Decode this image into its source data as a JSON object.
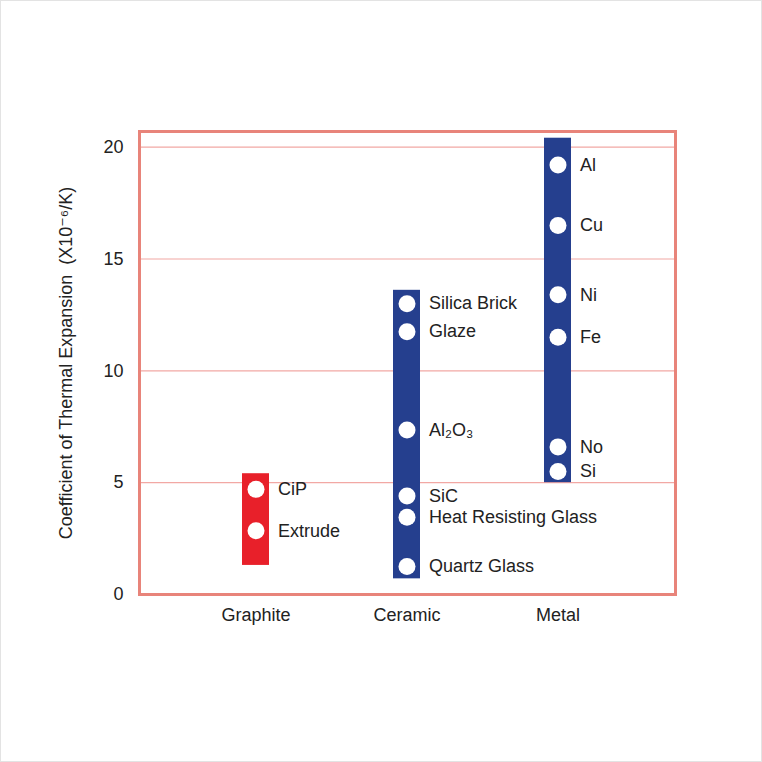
{
  "chart_data": {
    "type": "range_bar",
    "y_label": "Coefficient of Thermal Expansion  (X10⁻⁶/K)",
    "categories": [
      "Graphite",
      "Ceramic",
      "Metal"
    ],
    "low": [
      1.3,
      0.7,
      5.0
    ],
    "high": [
      5.4,
      13.6,
      20.4
    ],
    "colors": [
      "#e8202a",
      "#253f8e",
      "#253f8e"
    ],
    "points": [
      {
        "category": "Graphite",
        "name": "CiP",
        "value": 4.7
      },
      {
        "category": "Graphite",
        "name": "Extrude",
        "value": 2.85
      },
      {
        "category": "Ceramic",
        "name": "Silica Brick",
        "value": 13.0
      },
      {
        "category": "Ceramic",
        "name": "Glaze",
        "value": 11.75
      },
      {
        "category": "Ceramic",
        "name": "Al₂O₃",
        "value": 7.35
      },
      {
        "category": "Ceramic",
        "name": "SiC",
        "value": 4.4
      },
      {
        "category": "Ceramic",
        "name": "Heat Resisting Glass",
        "value": 3.45
      },
      {
        "category": "Ceramic",
        "name": "Quartz Glass",
        "value": 1.25
      },
      {
        "category": "Metal",
        "name": "Al",
        "value": 19.2
      },
      {
        "category": "Metal",
        "name": "Cu",
        "value": 16.5
      },
      {
        "category": "Metal",
        "name": "Ni",
        "value": 13.4
      },
      {
        "category": "Metal",
        "name": "Fe",
        "value": 11.5
      },
      {
        "category": "Metal",
        "name": "No",
        "value": 6.6
      },
      {
        "category": "Metal",
        "name": "Si",
        "value": 5.5
      }
    ],
    "ylim": [
      0,
      20.7
    ],
    "yticks": [
      0,
      5,
      10,
      15,
      20
    ],
    "grid": true
  }
}
